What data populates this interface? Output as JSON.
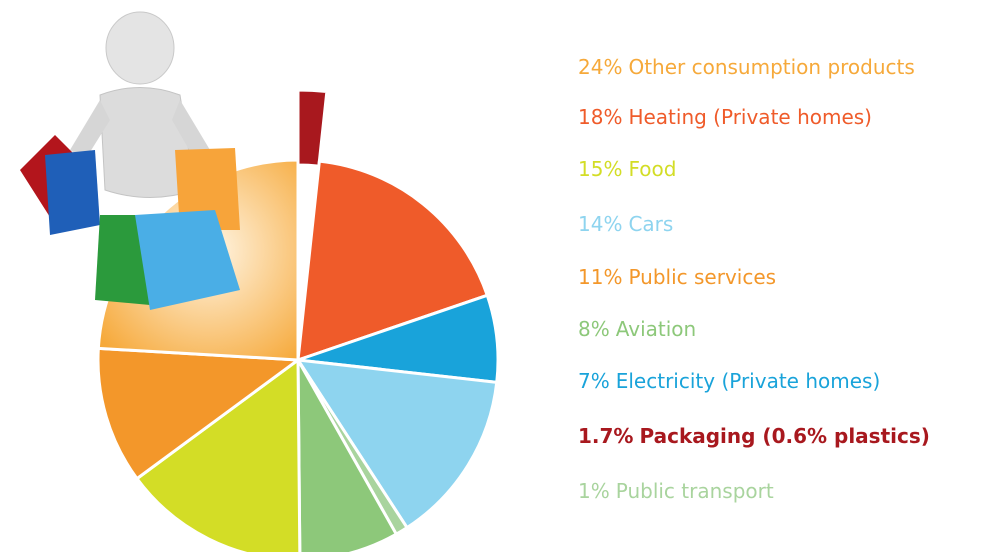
{
  "chart_data": {
    "type": "pie",
    "categories": [
      "Other consumption products",
      "Heating (Private homes)",
      "Food",
      "Cars",
      "Public services",
      "Aviation",
      "Electricity (Private homes)",
      "Packaging (0.6% plastics)",
      "Public transport"
    ],
    "values": [
      24,
      18,
      15,
      14,
      11,
      8,
      7,
      1.7,
      1
    ],
    "value_labels": [
      "24%",
      "18%",
      "15%",
      "14%",
      "11%",
      "8%",
      "7%",
      "1.7%",
      "1%"
    ],
    "colors": [
      "#f6a93a",
      "#ef5b2a",
      "#d3dd26",
      "#8ed4ef",
      "#f3972a",
      "#8dc87a",
      "#19a3da",
      "#a8181e",
      "#a9d49e"
    ]
  }
}
